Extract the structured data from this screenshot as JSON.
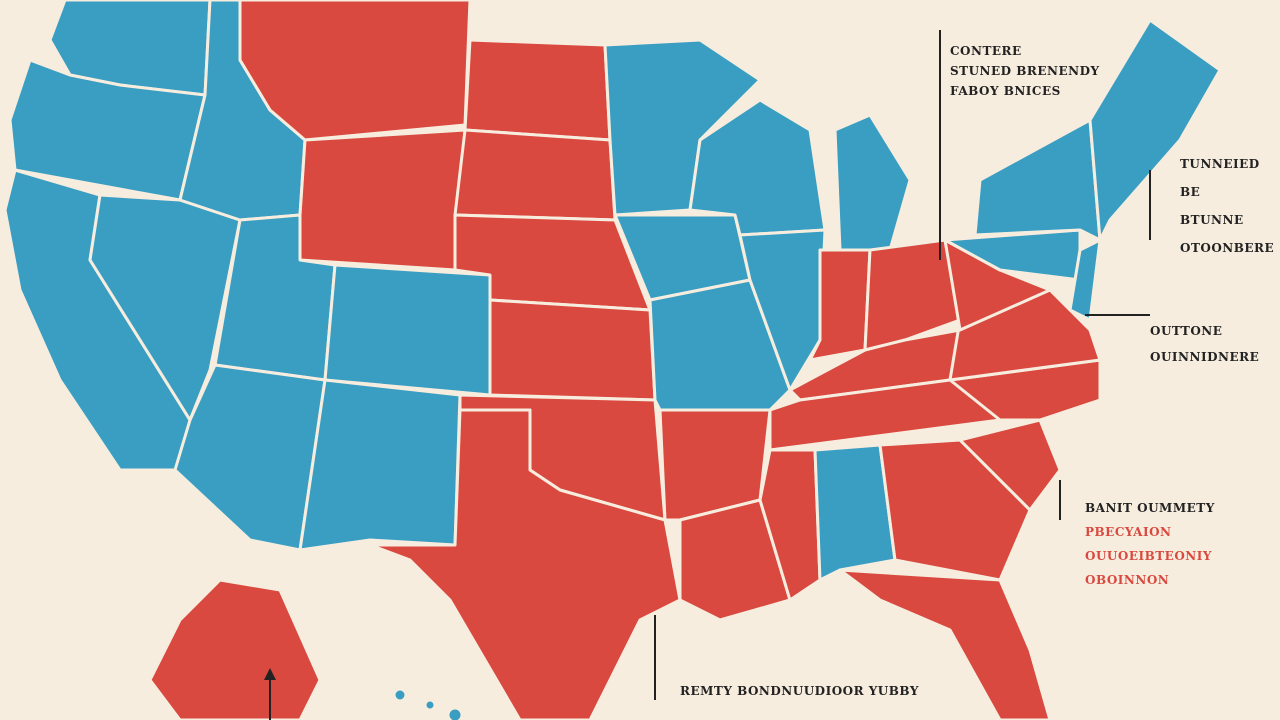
{
  "annotations": [
    {
      "lines": [
        "CONTERE",
        "STUNED BRENENDY",
        "FABOY BNICES"
      ]
    },
    {
      "lines": [
        "TUNNEIED",
        "BE",
        "BTUNNE",
        "OTOONBERE"
      ]
    },
    {
      "lines": [
        "OUTTONE",
        "OUINNIDNERE"
      ]
    },
    {
      "lines": [
        "BANIT OUMMETY",
        "PBECYAION",
        "OUUOEIBTEONIY",
        "OBOINNON"
      ]
    },
    {
      "lines": [
        "REMTY BONDNUUDIOOR YUBBY"
      ]
    }
  ]
}
